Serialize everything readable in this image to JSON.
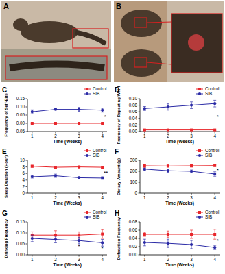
{
  "photos": [
    {
      "label": "A"
    },
    {
      "label": "B"
    }
  ],
  "chart_data": [
    {
      "type": "line",
      "label": "C",
      "ylabel": "Frequency of Self-Bite",
      "xlabel": "Time (Weeks)",
      "x": [
        1,
        2,
        3,
        4
      ],
      "xlim": [
        0.8,
        4.2
      ],
      "xticks": [
        1,
        2,
        3,
        4
      ],
      "ylim": [
        -0.05,
        0.15
      ],
      "yticks": [
        {
          "value": -0.05,
          "label": "-0.05"
        },
        {
          "value": 0,
          "label": "0.00"
        },
        {
          "value": 0.05,
          "label": "0.05"
        },
        {
          "value": 0.1,
          "label": "0.10"
        },
        {
          "value": 0.15,
          "label": "0.15"
        }
      ],
      "legend": "top-right",
      "series": [
        {
          "name": "Control",
          "color": "#e8262b",
          "marker": "square",
          "values": [
            0,
            0,
            0,
            0
          ],
          "errors": [
            0.002,
            0.002,
            0.002,
            0.002
          ]
        },
        {
          "name": "SIB",
          "color": "#2b2ba6",
          "marker": "circle",
          "values": [
            0.07,
            0.085,
            0.085,
            0.08
          ],
          "errors": [
            0.012,
            0.005,
            0.012,
            0.012
          ]
        }
      ],
      "annotations": [
        {
          "text": "*",
          "x": 4.12,
          "y": 0.04
        }
      ]
    },
    {
      "type": "line",
      "label": "D",
      "ylabel": "Frequency of Repeating Whirl",
      "xlabel": "Time (Weeks)",
      "x": [
        1,
        2,
        3,
        4
      ],
      "xlim": [
        0.8,
        4.2
      ],
      "xticks": [
        1,
        2,
        3,
        4
      ],
      "ylim": [
        0,
        0.1
      ],
      "yticks": [
        {
          "value": 0,
          "label": "0.00"
        },
        {
          "value": 0.02,
          "label": "0.02"
        },
        {
          "value": 0.04,
          "label": "0.04"
        },
        {
          "value": 0.06,
          "label": "0.06"
        },
        {
          "value": 0.08,
          "label": "0.08"
        },
        {
          "value": 0.1,
          "label": "0.10"
        }
      ],
      "legend": "top-right",
      "series": [
        {
          "name": "Control",
          "color": "#e8262b",
          "marker": "square",
          "values": [
            0.005,
            0.005,
            0.005,
            0.005
          ],
          "errors": [
            0.002,
            0.002,
            0.002,
            0.002
          ]
        },
        {
          "name": "SIB",
          "color": "#2b2ba6",
          "marker": "circle",
          "values": [
            0.07,
            0.075,
            0.08,
            0.085
          ],
          "errors": [
            0.006,
            0.01,
            0.01,
            0.01
          ]
        }
      ],
      "annotations": [
        {
          "text": "*",
          "x": 4.12,
          "y": 0.045
        }
      ]
    },
    {
      "type": "line",
      "label": "E",
      "ylabel": "Sleep Duration (Hour)",
      "xlabel": "Time (Weeks)",
      "x": [
        1,
        2,
        3,
        4
      ],
      "xlim": [
        0.8,
        4.2
      ],
      "xticks": [
        1,
        2,
        3,
        4
      ],
      "ylim": [
        0,
        10
      ],
      "yticks": [
        0,
        2,
        4,
        6,
        8,
        10
      ],
      "legend": "top-right",
      "series": [
        {
          "name": "Control",
          "color": "#e8262b",
          "marker": "square",
          "values": [
            8.2,
            7.9,
            8.0,
            7.9
          ],
          "errors": [
            0.3,
            0.2,
            0.3,
            0.3
          ]
        },
        {
          "name": "SIB",
          "color": "#2b2ba6",
          "marker": "circle",
          "values": [
            5.0,
            5.3,
            4.7,
            4.6
          ],
          "errors": [
            0.4,
            0.5,
            0.3,
            0.4
          ]
        }
      ],
      "annotations": [
        {
          "text": "**",
          "x": 4.15,
          "y": 6.3
        }
      ]
    },
    {
      "type": "line",
      "label": "F",
      "ylabel": "Dietary Amount (g)",
      "xlabel": "Time (Weeks)",
      "x": [
        1,
        2,
        3,
        4
      ],
      "xlim": [
        0.8,
        4.2
      ],
      "xticks": [
        1,
        2,
        3,
        4
      ],
      "ylim": [
        0,
        300
      ],
      "yticks": [
        0,
        100,
        200,
        300
      ],
      "legend": "top-right",
      "series": [
        {
          "name": "Control",
          "color": "#e8262b",
          "marker": "square",
          "values": [
            250,
            248,
            250,
            252
          ],
          "errors": [
            15,
            10,
            12,
            8
          ]
        },
        {
          "name": "SIB",
          "color": "#2b2ba6",
          "marker": "circle",
          "values": [
            220,
            205,
            200,
            175
          ],
          "errors": [
            10,
            15,
            12,
            20
          ]
        }
      ],
      "annotations": [
        {
          "text": "*",
          "x": 4.12,
          "y": 215
        }
      ]
    },
    {
      "type": "line",
      "label": "G",
      "ylabel": "Drinking Frequency",
      "xlabel": "Time (Weeks)",
      "x": [
        1,
        2,
        3,
        4
      ],
      "xlim": [
        0.8,
        4.2
      ],
      "xticks": [
        1,
        2,
        3,
        4
      ],
      "ylim": [
        0,
        0.15
      ],
      "yticks": [
        {
          "value": 0,
          "label": "0.00"
        },
        {
          "value": 0.05,
          "label": "0.05"
        },
        {
          "value": 0.1,
          "label": "0.10"
        },
        {
          "value": 0.15,
          "label": "0.15"
        }
      ],
      "legend": "top-right",
      "series": [
        {
          "name": "Control",
          "color": "#e8262b",
          "marker": "square",
          "values": [
            0.09,
            0.09,
            0.09,
            0.095
          ],
          "errors": [
            0.015,
            0.02,
            0.015,
            0.02
          ]
        },
        {
          "name": "SIB",
          "color": "#2b2ba6",
          "marker": "circle",
          "values": [
            0.075,
            0.07,
            0.065,
            0.055
          ],
          "errors": [
            0.015,
            0.015,
            0.015,
            0.015
          ]
        }
      ],
      "annotations": [
        {
          "text": "*",
          "x": 3,
          "y": 0.04
        },
        {
          "text": "*",
          "x": 4,
          "y": 0.03
        }
      ]
    },
    {
      "type": "line",
      "label": "H",
      "ylabel": "Defecation Frequency",
      "xlabel": "Time (Weeks)",
      "x": [
        1,
        2,
        3,
        4
      ],
      "xlim": [
        0.8,
        4.2
      ],
      "xticks": [
        1,
        2,
        3,
        4
      ],
      "ylim": [
        0,
        0.08
      ],
      "yticks": [
        {
          "value": 0,
          "label": "0.00"
        },
        {
          "value": 0.02,
          "label": "0.02"
        },
        {
          "value": 0.04,
          "label": "0.04"
        },
        {
          "value": 0.06,
          "label": "0.06"
        },
        {
          "value": 0.08,
          "label": "0.08"
        }
      ],
      "legend": "top-right",
      "series": [
        {
          "name": "Control",
          "color": "#e8262b",
          "marker": "square",
          "values": [
            0.05,
            0.05,
            0.05,
            0.05
          ],
          "errors": [
            0.005,
            0.008,
            0.01,
            0.012
          ]
        },
        {
          "name": "SIB",
          "color": "#2b2ba6",
          "marker": "circle",
          "values": [
            0.03,
            0.028,
            0.025,
            0.018
          ],
          "errors": [
            0.008,
            0.01,
            0.01,
            0.005
          ]
        }
      ],
      "annotations": [
        {
          "text": "*",
          "x": 4.12,
          "y": 0.035
        }
      ]
    }
  ]
}
